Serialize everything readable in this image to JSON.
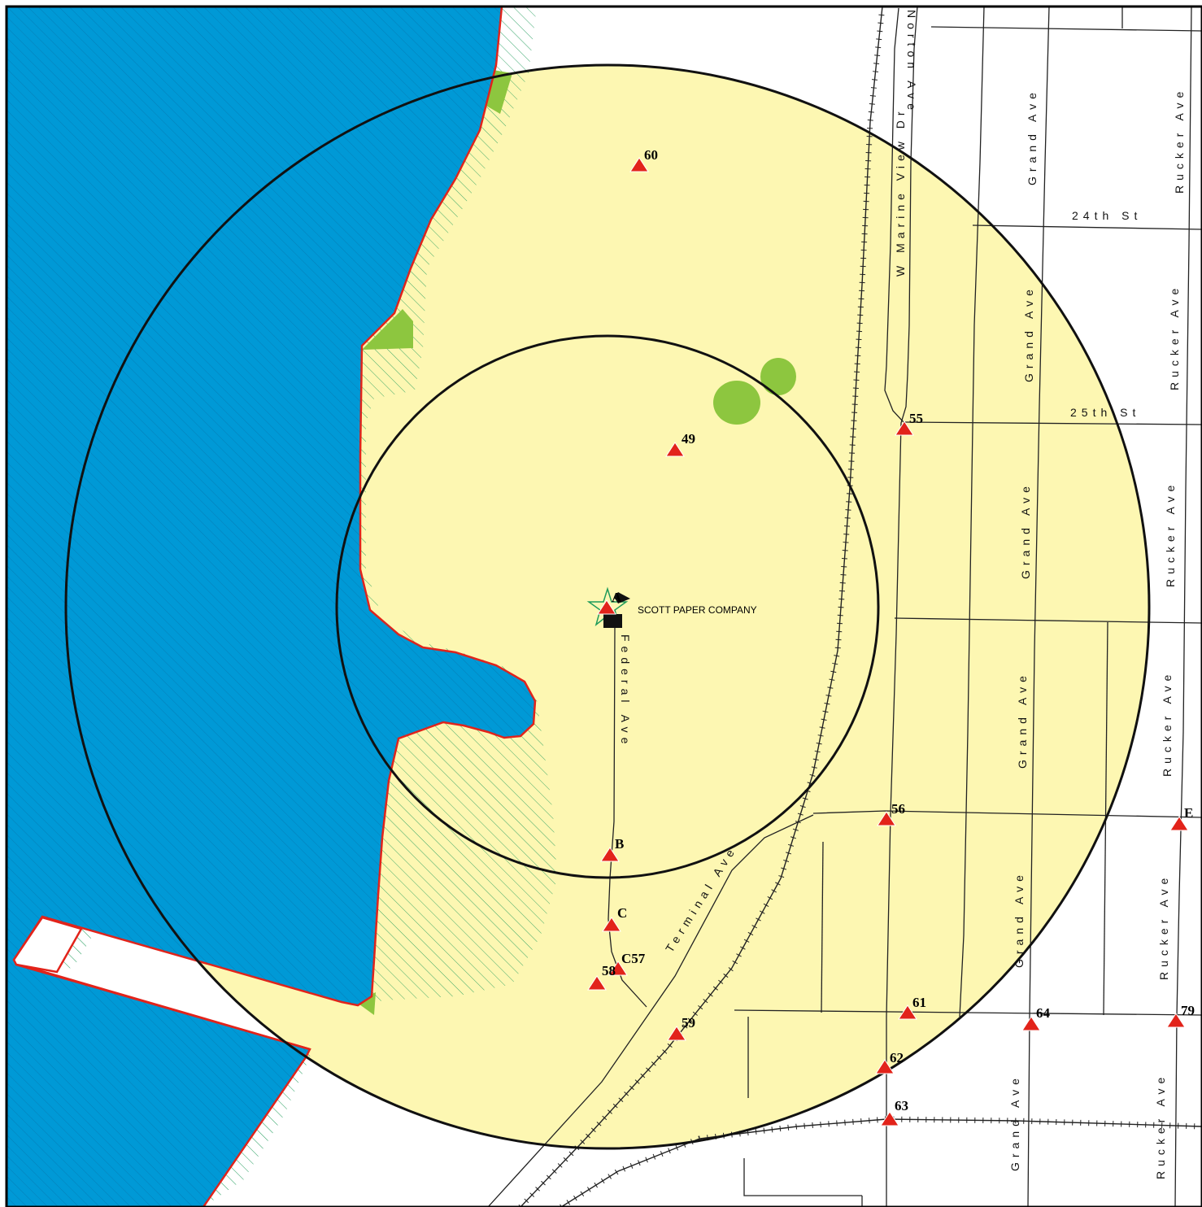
{
  "colors": {
    "water": "#0099d6",
    "land_buffer": "#fdf7b2",
    "shoreline": "#e2231a",
    "vegetation": "#8dc63f",
    "hatch": "#1f9b5a",
    "ring": "#111111",
    "marker": "#e2231a",
    "road": "#222222"
  },
  "facility": {
    "label": "SCOTT PAPER COMPANY",
    "icon": "star-flag-icon"
  },
  "streets": {
    "federal": "Federal Ave",
    "terminal": "Terminal Ave",
    "marine_view": "W Marine View Dr",
    "norton": "Norton Ave",
    "grand": "Grand Ave",
    "rucker": "Rucker Ave",
    "st24": "24th St",
    "st25": "25th St"
  },
  "markers": [
    {
      "id": "60",
      "label": "60"
    },
    {
      "id": "49",
      "label": "49"
    },
    {
      "id": "55",
      "label": "55"
    },
    {
      "id": "A",
      "label": "A"
    },
    {
      "id": "B",
      "label": "B"
    },
    {
      "id": "C",
      "label": "C"
    },
    {
      "id": "C57",
      "label": "C57"
    },
    {
      "id": "58",
      "label": "58"
    },
    {
      "id": "59",
      "label": "59"
    },
    {
      "id": "56",
      "label": "56"
    },
    {
      "id": "E",
      "label": "E"
    },
    {
      "id": "61",
      "label": "61"
    },
    {
      "id": "64",
      "label": "64"
    },
    {
      "id": "79",
      "label": "79"
    },
    {
      "id": "62",
      "label": "62"
    },
    {
      "id": "63",
      "label": "63"
    }
  ]
}
